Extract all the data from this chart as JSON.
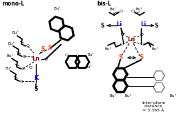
{
  "background_color": "#ffffff",
  "fig_width": 2.72,
  "fig_height": 1.89,
  "dpi": 100,
  "title_left": "mono-L",
  "title_right": "bis-L",
  "Ln_color": "#8B0000",
  "K_color": "#0000CD",
  "Li_color": "#0000CD",
  "S_orange_color": "#FF4500",
  "S_black_color": "#000000",
  "bond_color": "#000000",
  "inter_plane_text": "inter-plane\ndistance\n= 3.365 Å"
}
